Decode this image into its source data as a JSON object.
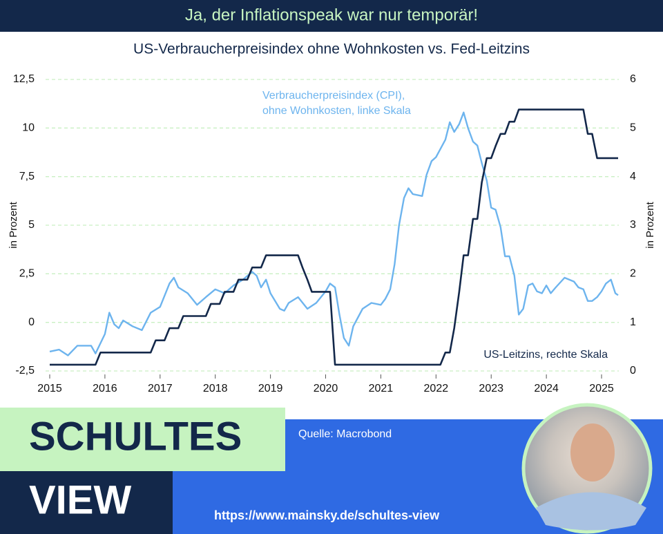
{
  "banner": "Ja, der Inflationspeak war nur temporär!",
  "chart_data": {
    "type": "line",
    "title": "US-Verbraucherpreisindex ohne Wohnkosten vs. Fed-Leitzins",
    "ylabel": "in Prozent",
    "y2label": "in Prozent",
    "xlim": [
      2015,
      2025.3
    ],
    "xticks": [
      2015,
      2016,
      2017,
      2018,
      2019,
      2020,
      2021,
      2022,
      2023,
      2024,
      2025
    ],
    "ylim": [
      -2.5,
      12.5
    ],
    "yticks": [
      {
        "value": -2.5,
        "label": "-2,5"
      },
      0,
      {
        "value": 2.5,
        "label": "2,5"
      },
      5,
      {
        "value": 7.5,
        "label": "7,5"
      },
      10,
      {
        "value": 12.5,
        "label": "12,5"
      }
    ],
    "y2lim": [
      0,
      6
    ],
    "y2ticks": [
      0,
      1,
      2,
      3,
      4,
      5,
      6
    ],
    "grid": true,
    "series": [
      {
        "name": [
          "Verbraucherpreisindex (CPI),",
          "ohne Wohnkosten, linke Skala"
        ],
        "color": "#6db4ee",
        "axis": "y",
        "x": [
          2015,
          2015.17,
          2015.33,
          2015.5,
          2015.75,
          2015.83,
          2016,
          2016.08,
          2016.17,
          2016.25,
          2016.33,
          2016.5,
          2016.67,
          2016.83,
          2017,
          2017.17,
          2017.25,
          2017.33,
          2017.5,
          2017.67,
          2017.83,
          2018,
          2018.17,
          2018.33,
          2018.5,
          2018.67,
          2018.75,
          2018.83,
          2018.92,
          2019,
          2019.17,
          2019.25,
          2019.33,
          2019.5,
          2019.67,
          2019.83,
          2020,
          2020.08,
          2020.17,
          2020.25,
          2020.33,
          2020.42,
          2020.5,
          2020.67,
          2020.83,
          2021,
          2021.08,
          2021.17,
          2021.25,
          2021.33,
          2021.42,
          2021.5,
          2021.58,
          2021.75,
          2021.83,
          2021.92,
          2022,
          2022.17,
          2022.25,
          2022.33,
          2022.42,
          2022.5,
          2022.58,
          2022.67,
          2022.75,
          2022.83,
          2022.92,
          2023,
          2023.08,
          2023.17,
          2023.25,
          2023.33,
          2023.42,
          2023.5,
          2023.58,
          2023.67,
          2023.75,
          2023.83,
          2023.92,
          2024,
          2024.08,
          2024.17,
          2024.33,
          2024.5,
          2024.58,
          2024.67,
          2024.75,
          2024.83,
          2024.92,
          2025,
          2025.08,
          2025.17,
          2025.25,
          2025.3
        ],
        "values": [
          -1.5,
          -1.4,
          -1.7,
          -1.2,
          -1.2,
          -1.6,
          -0.6,
          0.5,
          -0.1,
          -0.3,
          0.1,
          -0.2,
          -0.4,
          0.5,
          0.8,
          2.0,
          2.3,
          1.8,
          1.5,
          0.9,
          1.3,
          1.7,
          1.5,
          1.9,
          2.2,
          2.6,
          2.4,
          1.8,
          2.2,
          1.5,
          0.7,
          0.6,
          1.0,
          1.3,
          0.7,
          1.0,
          1.6,
          2.0,
          1.8,
          0.4,
          -0.8,
          -1.2,
          -0.2,
          0.7,
          1.0,
          0.9,
          1.2,
          1.7,
          3.0,
          5.0,
          6.4,
          6.9,
          6.6,
          6.5,
          7.6,
          8.3,
          8.5,
          9.4,
          10.3,
          9.8,
          10.2,
          10.8,
          10.0,
          9.3,
          9.1,
          8.2,
          7.3,
          5.9,
          5.8,
          4.9,
          3.4,
          3.4,
          2.4,
          0.4,
          0.7,
          1.9,
          2.0,
          1.6,
          1.5,
          1.9,
          1.5,
          1.8,
          2.3,
          2.1,
          1.8,
          1.7,
          1.1,
          1.1,
          1.3,
          1.6,
          2.0,
          2.2,
          1.5,
          1.4
        ]
      },
      {
        "name": "US-Leitzins, rechte Skala",
        "color": "#13284a",
        "axis": "y2",
        "x": [
          2015,
          2015.83,
          2015.92,
          2016.83,
          2016.92,
          2017.08,
          2017.17,
          2017.33,
          2017.42,
          2017.83,
          2017.92,
          2018.08,
          2018.17,
          2018.33,
          2018.42,
          2018.58,
          2018.67,
          2018.83,
          2018.92,
          2019.5,
          2019.58,
          2019.67,
          2019.75,
          2020.08,
          2020.17,
          2022.08,
          2022.17,
          2022.25,
          2022.33,
          2022.42,
          2022.5,
          2022.58,
          2022.67,
          2022.75,
          2022.83,
          2022.92,
          2023,
          2023.08,
          2023.17,
          2023.25,
          2023.33,
          2023.42,
          2023.5,
          2024.67,
          2024.75,
          2024.83,
          2024.92,
          2025.3
        ],
        "values": [
          0.13,
          0.13,
          0.38,
          0.38,
          0.63,
          0.63,
          0.88,
          0.88,
          1.13,
          1.13,
          1.38,
          1.38,
          1.63,
          1.63,
          1.88,
          1.88,
          2.13,
          2.13,
          2.38,
          2.38,
          2.13,
          1.88,
          1.63,
          1.63,
          0.13,
          0.13,
          0.38,
          0.38,
          0.88,
          1.63,
          2.38,
          2.38,
          3.13,
          3.13,
          3.88,
          4.38,
          4.38,
          4.63,
          4.88,
          4.88,
          5.13,
          5.13,
          5.38,
          5.38,
          4.88,
          4.88,
          4.38,
          4.38
        ]
      }
    ]
  },
  "brand": {
    "name_top": "SCHULTES",
    "name_bottom": "VIEW",
    "source": "Quelle: Macrobond",
    "url": "https://www.mainsky.de/schultes-view"
  }
}
